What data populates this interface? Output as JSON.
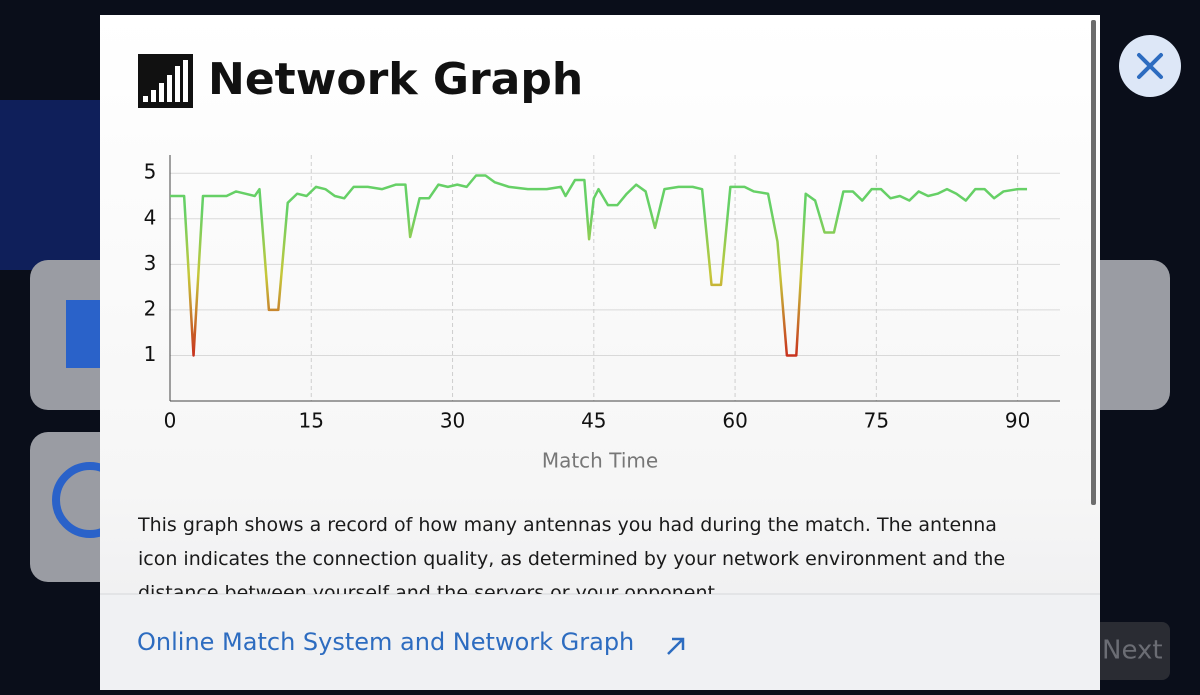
{
  "dialog": {
    "title": "Network Graph",
    "description": "This graph shows a record of how many antennas you had during the match. The antenna icon indicates the connection quality, as determined by your network environment and the distance between yourself and the servers or your opponent.",
    "link": "Online Match System and Network Graph"
  },
  "background": {
    "button": "Next"
  },
  "chart_data": {
    "type": "line",
    "xlabel": "Match Time",
    "x": [
      0,
      1.5,
      2.5,
      3.5,
      5,
      6,
      7,
      8,
      9,
      9.5,
      10.5,
      11.5,
      12.5,
      13.5,
      14.5,
      15.5,
      16.5,
      17.5,
      18.5,
      19.5,
      21,
      22.5,
      24,
      25,
      25.5,
      26.5,
      27.5,
      28.5,
      29.5,
      30.5,
      31.5,
      32.5,
      33.5,
      34.5,
      36,
      38,
      40,
      41.5,
      42,
      43,
      44,
      44.5,
      45,
      45.5,
      46.5,
      47.5,
      48.5,
      49.5,
      50.5,
      51.5,
      52.5,
      54,
      55.5,
      56.5,
      57.5,
      58.5,
      59.5,
      61,
      62,
      63.5,
      64.5,
      65.5,
      66.5,
      67.5,
      68.5,
      69.5,
      70.5,
      71.5,
      72.5,
      73.5,
      74.5,
      75.5,
      76.5,
      77.5,
      78.5,
      79.5,
      80.5,
      81.5,
      82.5,
      83.5,
      84.5,
      85.5,
      86.5,
      87.5,
      88.5,
      90,
      91
    ],
    "series": [
      {
        "color": "#66d066",
        "low_color": "#c8321e",
        "values": [
          4.5,
          4.5,
          1.0,
          4.5,
          4.5,
          4.5,
          4.6,
          4.55,
          4.5,
          4.65,
          2.0,
          2.0,
          4.35,
          4.55,
          4.5,
          4.7,
          4.65,
          4.5,
          4.45,
          4.7,
          4.7,
          4.65,
          4.75,
          4.75,
          3.6,
          4.45,
          4.45,
          4.75,
          4.7,
          4.75,
          4.7,
          4.95,
          4.95,
          4.8,
          4.7,
          4.65,
          4.65,
          4.7,
          4.5,
          4.85,
          4.85,
          3.55,
          4.45,
          4.65,
          4.3,
          4.3,
          4.55,
          4.75,
          4.6,
          3.8,
          4.65,
          4.7,
          4.7,
          4.65,
          2.55,
          2.55,
          4.7,
          4.7,
          4.6,
          4.55,
          3.5,
          1.0,
          1.0,
          4.55,
          4.4,
          3.7,
          3.7,
          4.6,
          4.6,
          4.4,
          4.65,
          4.65,
          4.45,
          4.5,
          4.4,
          4.6,
          4.5,
          4.55,
          4.65,
          4.55,
          4.4,
          4.65,
          4.65,
          4.45,
          4.6,
          4.65,
          4.65
        ]
      }
    ],
    "xlim": [
      0,
      94.5
    ],
    "ylim": [
      0,
      5.4
    ],
    "xticks": [
      0,
      15,
      30,
      45,
      60,
      75,
      90
    ],
    "yticks": [
      1,
      2,
      3,
      4,
      5
    ],
    "grid": true
  }
}
